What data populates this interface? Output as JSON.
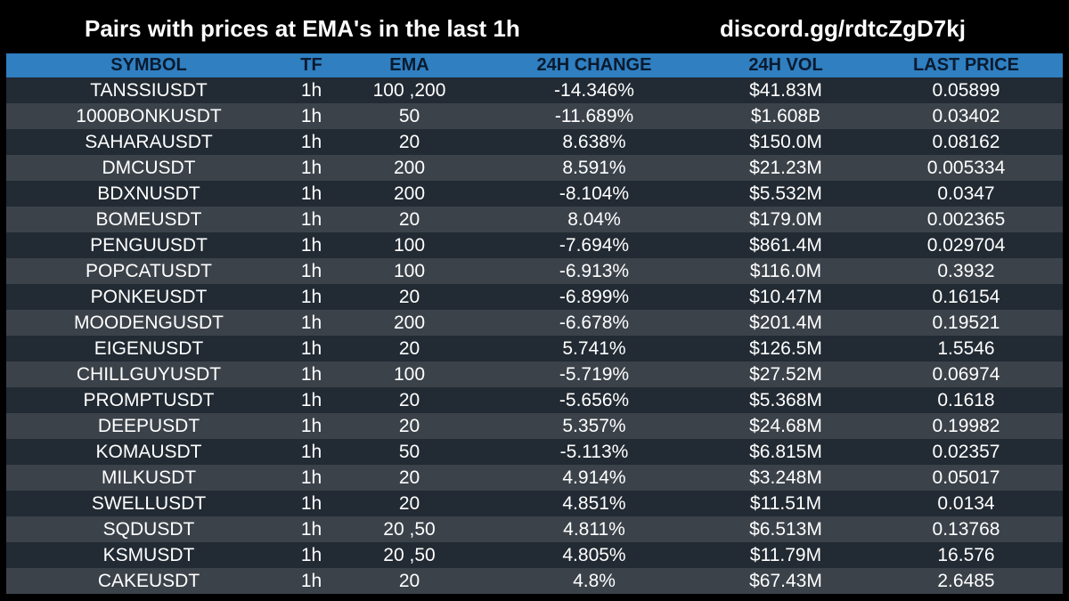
{
  "header": {
    "title": "Pairs with prices at EMA's in the last 1h",
    "link": "discord.gg/rdtcZgD7kj"
  },
  "columns": {
    "symbol": "SYMBOL",
    "tf": "TF",
    "ema": "EMA",
    "change": "24H CHANGE",
    "vol": "24H VOL",
    "price": "LAST PRICE"
  },
  "rows": [
    {
      "symbol": "TANSSIUSDT",
      "tf": "1h",
      "ema": "100 ,200",
      "change": "-14.346%",
      "vol": "$41.83M",
      "price": "0.05899"
    },
    {
      "symbol": "1000BONKUSDT",
      "tf": "1h",
      "ema": "50",
      "change": "-11.689%",
      "vol": "$1.608B",
      "price": "0.03402"
    },
    {
      "symbol": "SAHARAUSDT",
      "tf": "1h",
      "ema": "20",
      "change": "8.638%",
      "vol": "$150.0M",
      "price": "0.08162"
    },
    {
      "symbol": "DMCUSDT",
      "tf": "1h",
      "ema": "200",
      "change": "8.591%",
      "vol": "$21.23M",
      "price": "0.005334"
    },
    {
      "symbol": "BDXNUSDT",
      "tf": "1h",
      "ema": "200",
      "change": "-8.104%",
      "vol": "$5.532M",
      "price": "0.0347"
    },
    {
      "symbol": "BOMEUSDT",
      "tf": "1h",
      "ema": "20",
      "change": "8.04%",
      "vol": "$179.0M",
      "price": "0.002365"
    },
    {
      "symbol": "PENGUUSDT",
      "tf": "1h",
      "ema": "100",
      "change": "-7.694%",
      "vol": "$861.4M",
      "price": "0.029704"
    },
    {
      "symbol": "POPCATUSDT",
      "tf": "1h",
      "ema": "100",
      "change": "-6.913%",
      "vol": "$116.0M",
      "price": "0.3932"
    },
    {
      "symbol": "PONKEUSDT",
      "tf": "1h",
      "ema": "20",
      "change": "-6.899%",
      "vol": "$10.47M",
      "price": "0.16154"
    },
    {
      "symbol": "MOODENGUSDT",
      "tf": "1h",
      "ema": "200",
      "change": "-6.678%",
      "vol": "$201.4M",
      "price": "0.19521"
    },
    {
      "symbol": "EIGENUSDT",
      "tf": "1h",
      "ema": "20",
      "change": "5.741%",
      "vol": "$126.5M",
      "price": "1.5546"
    },
    {
      "symbol": "CHILLGUYUSDT",
      "tf": "1h",
      "ema": "100",
      "change": "-5.719%",
      "vol": "$27.52M",
      "price": "0.06974"
    },
    {
      "symbol": "PROMPTUSDT",
      "tf": "1h",
      "ema": "20",
      "change": "-5.656%",
      "vol": "$5.368M",
      "price": "0.1618"
    },
    {
      "symbol": "DEEPUSDT",
      "tf": "1h",
      "ema": "20",
      "change": "5.357%",
      "vol": "$24.68M",
      "price": "0.19982"
    },
    {
      "symbol": "KOMAUSDT",
      "tf": "1h",
      "ema": "50",
      "change": "-5.113%",
      "vol": "$6.815M",
      "price": "0.02357"
    },
    {
      "symbol": "MILKUSDT",
      "tf": "1h",
      "ema": "20",
      "change": "4.914%",
      "vol": "$3.248M",
      "price": "0.05017"
    },
    {
      "symbol": "SWELLUSDT",
      "tf": "1h",
      "ema": "20",
      "change": "4.851%",
      "vol": "$11.51M",
      "price": "0.0134"
    },
    {
      "symbol": "SQDUSDT",
      "tf": "1h",
      "ema": "20 ,50",
      "change": "4.811%",
      "vol": "$6.513M",
      "price": "0.13768"
    },
    {
      "symbol": "KSMUSDT",
      "tf": "1h",
      "ema": "20 ,50",
      "change": "4.805%",
      "vol": "$11.79M",
      "price": "16.576"
    },
    {
      "symbol": "CAKEUSDT",
      "tf": "1h",
      "ema": "20",
      "change": "4.8%",
      "vol": "$67.43M",
      "price": "2.6485"
    }
  ]
}
